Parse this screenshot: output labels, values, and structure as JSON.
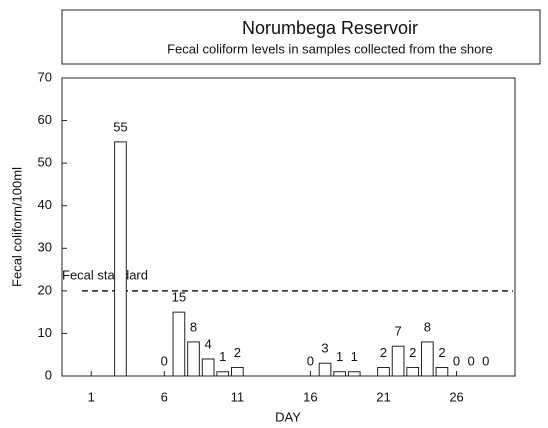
{
  "chart_data": {
    "type": "bar",
    "title": "Norumbega Reservoir",
    "subtitle": "Fecal coliform levels in samples collected from the shore",
    "x_label": "DAY",
    "y_label": "Fecal coliform/100ml",
    "x": [
      3,
      6,
      7,
      8,
      9,
      10,
      11,
      16,
      17,
      18,
      19,
      21,
      22,
      23,
      24,
      25,
      26,
      27,
      28
    ],
    "values": [
      55,
      0,
      15,
      8,
      4,
      1,
      2,
      0,
      3,
      1,
      1,
      2,
      7,
      2,
      8,
      2,
      0,
      0,
      0
    ],
    "color": "#ffffff",
    "xlim": [
      -1,
      30
    ],
    "xticks": [
      1,
      6,
      11,
      16,
      21,
      26
    ],
    "ylim": [
      0,
      70
    ],
    "yticks": [
      0,
      10,
      20,
      30,
      40,
      50,
      60,
      70
    ],
    "reference_line": {
      "value": 20,
      "label": "Fecal standard"
    }
  }
}
